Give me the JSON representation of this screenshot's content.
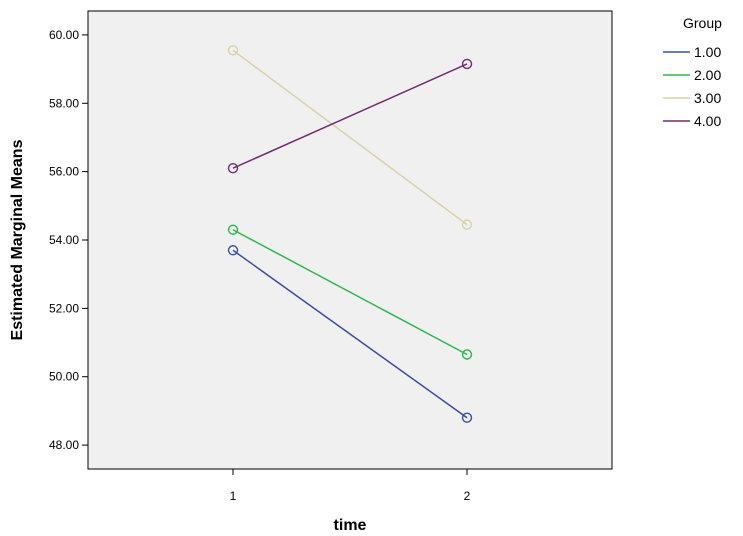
{
  "chart_data": {
    "type": "line",
    "xlabel": "time",
    "ylabel": "Estimated Marginal Means",
    "x": [
      "1",
      "2"
    ],
    "ylim": [
      47.3,
      60.7
    ],
    "yticks": [
      "48.00",
      "50.00",
      "52.00",
      "54.00",
      "56.00",
      "58.00",
      "60.00"
    ],
    "grid": false,
    "legend": {
      "title": "Group",
      "position": "right"
    },
    "series": [
      {
        "name": "1.00",
        "values": [
          53.7,
          48.8
        ],
        "color": "#3a4ea0"
      },
      {
        "name": "2.00",
        "values": [
          54.3,
          50.65
        ],
        "color": "#2db84a"
      },
      {
        "name": "3.00",
        "values": [
          59.55,
          54.45
        ],
        "color": "#d8d3a4"
      },
      {
        "name": "4.00",
        "values": [
          56.1,
          59.15
        ],
        "color": "#722c74"
      }
    ]
  }
}
